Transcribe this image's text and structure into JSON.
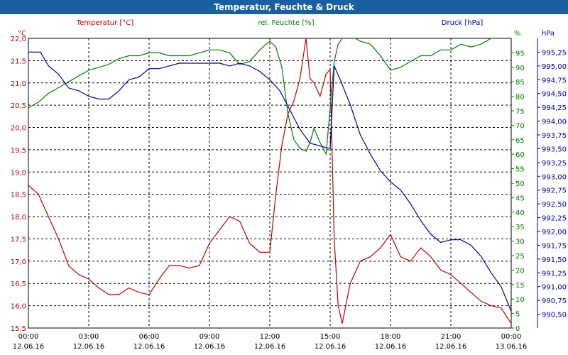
{
  "window": {
    "title": "Temperatur, Feuchte & Druck"
  },
  "chart_data": {
    "type": "line",
    "title": "Temperatur, Feuchte & Druck",
    "grid": true,
    "colors": {
      "temperature": "#c00000",
      "humidity": "#008000",
      "pressure": "#000099",
      "titlebar": "#1a5fa0"
    },
    "x_ticks": [
      {
        "h": 0,
        "time": "00:00",
        "date": "12.06.16"
      },
      {
        "h": 3,
        "time": "03:00",
        "date": "12.06.16"
      },
      {
        "h": 6,
        "time": "06:00",
        "date": "12.06.16"
      },
      {
        "h": 9,
        "time": "09:00",
        "date": "12.06.16"
      },
      {
        "h": 12,
        "time": "12:00",
        "date": "12.06.16"
      },
      {
        "h": 15,
        "time": "15:00",
        "date": "12.06.16"
      },
      {
        "h": 18,
        "time": "18:00",
        "date": "12.06.16"
      },
      {
        "h": 21,
        "time": "21:00",
        "date": "12.06.16"
      },
      {
        "h": 24,
        "time": "00:00",
        "date": "13.06.16"
      }
    ],
    "xlim": [
      0,
      24
    ],
    "axes": {
      "temperature": {
        "label": "Temperatur [°C]",
        "unit": "°C",
        "ylim": [
          15.5,
          22.0
        ],
        "ticks": [
          "15,5",
          "16,0",
          "16,5",
          "17,0",
          "17,5",
          "18,0",
          "18,5",
          "19,0",
          "19,5",
          "20,0",
          "20,5",
          "21,0",
          "21,5",
          "22,0"
        ]
      },
      "humidity": {
        "label": "rel. Feuchte [%]",
        "unit": "%",
        "ylim": [
          0,
          100
        ],
        "ticks": [
          "0",
          "5",
          "10",
          "15",
          "20",
          "25",
          "30",
          "35",
          "40",
          "45",
          "50",
          "55",
          "60",
          "65",
          "70",
          "75",
          "80",
          "85",
          "90",
          "95"
        ]
      },
      "pressure": {
        "label": "Druck [hPa]",
        "unit": "hPa",
        "ylim": [
          990.25,
          995.5
        ],
        "ticks": [
          "990,50",
          "990,75",
          "991,00",
          "991,25",
          "991,50",
          "991,75",
          "992,00",
          "992,25",
          "992,50",
          "992,75",
          "993,00",
          "993,25",
          "993,50",
          "993,75",
          "994,00",
          "994,25",
          "994,50",
          "994,75",
          "995,00",
          "995,25"
        ]
      }
    },
    "series": [
      {
        "name": "Temperatur",
        "key": "temperature",
        "color": "#c00000",
        "x": [
          0,
          0.5,
          1,
          1.5,
          2,
          2.5,
          3,
          3.5,
          4,
          4.5,
          5,
          5.5,
          6,
          6.5,
          7,
          7.5,
          8,
          8.5,
          9,
          9.5,
          10,
          10.5,
          11,
          11.5,
          12,
          12.3,
          12.6,
          12.9,
          13.2,
          13.5,
          13.8,
          14,
          14.2,
          14.5,
          14.8,
          15,
          15.2,
          15.4,
          15.6,
          16,
          16.5,
          17,
          17.5,
          18,
          18.5,
          19,
          19.5,
          20,
          20.5,
          21,
          21.5,
          22,
          22.5,
          23,
          23.5,
          24
        ],
        "y": [
          18.7,
          18.5,
          18.0,
          17.5,
          16.9,
          16.7,
          16.6,
          16.4,
          16.25,
          16.25,
          16.4,
          16.3,
          16.25,
          16.6,
          16.9,
          16.9,
          16.85,
          16.9,
          17.4,
          17.7,
          18.0,
          17.9,
          17.4,
          17.2,
          17.2,
          18.5,
          19.6,
          20.3,
          20.6,
          21.1,
          22.0,
          21.1,
          21.0,
          20.7,
          21.2,
          21.3,
          17.5,
          16.0,
          15.6,
          16.5,
          17.0,
          17.1,
          17.3,
          17.6,
          17.1,
          17.0,
          17.3,
          17.1,
          16.8,
          16.7,
          16.5,
          16.3,
          16.1,
          16.0,
          15.95,
          15.6
        ]
      },
      {
        "name": "rel. Feuchte",
        "key": "humidity",
        "color": "#008000",
        "x": [
          0,
          0.5,
          1,
          1.5,
          2,
          2.5,
          3,
          3.5,
          4,
          4.5,
          5,
          5.5,
          6,
          6.5,
          7,
          7.5,
          8,
          8.5,
          9,
          9.5,
          10,
          10.5,
          11,
          11.5,
          12,
          12.3,
          12.6,
          12.9,
          13.2,
          13.5,
          13.8,
          14,
          14.2,
          14.5,
          14.8,
          15,
          15.2,
          15.4,
          15.6,
          16,
          16.5,
          17,
          17.5,
          18,
          18.5,
          19,
          19.5,
          20,
          20.5,
          21,
          21.5,
          22,
          22.5,
          23,
          24
        ],
        "y": [
          76,
          78,
          81,
          83,
          85,
          87,
          89,
          90,
          91,
          93,
          94,
          94,
          95,
          95,
          94,
          94,
          94,
          95,
          96,
          96,
          95,
          91,
          92,
          96,
          99,
          97,
          90,
          74,
          65,
          62,
          61,
          64,
          69,
          64,
          60,
          76,
          92,
          98,
          100,
          101,
          99,
          98,
          94,
          89,
          90,
          92,
          94,
          94,
          96,
          96,
          98,
          97,
          98,
          100,
          101
        ]
      },
      {
        "name": "Druck",
        "key": "pressure",
        "color": "#000099",
        "x": [
          0,
          0.3,
          0.6,
          1,
          1.5,
          2,
          2.5,
          3,
          3.5,
          4,
          4.5,
          5,
          5.5,
          6,
          6.5,
          7,
          7.5,
          8,
          8.5,
          9,
          9.5,
          10,
          10.5,
          11,
          11.5,
          12,
          12.5,
          13,
          13.5,
          14,
          14.5,
          15,
          15.2,
          15.5,
          16,
          16.5,
          17,
          17.5,
          18,
          18.5,
          19,
          19.5,
          20,
          20.5,
          21,
          21.5,
          22,
          22.5,
          23,
          23.5,
          24
        ],
        "y": [
          995.25,
          995.25,
          995.25,
          995.0,
          994.85,
          994.6,
          994.55,
          994.45,
          994.4,
          994.4,
          994.55,
          994.75,
          994.8,
          994.95,
          994.95,
          995.0,
          995.05,
          995.05,
          995.05,
          995.05,
          995.05,
          995.0,
          995.05,
          995.0,
          994.9,
          994.75,
          994.55,
          994.2,
          993.85,
          993.6,
          993.55,
          993.5,
          995.0,
          994.75,
          994.3,
          993.75,
          993.4,
          993.1,
          992.9,
          992.75,
          992.5,
          992.2,
          991.95,
          991.8,
          991.85,
          991.85,
          991.75,
          991.55,
          991.25,
          991.0,
          990.55
        ]
      }
    ]
  }
}
